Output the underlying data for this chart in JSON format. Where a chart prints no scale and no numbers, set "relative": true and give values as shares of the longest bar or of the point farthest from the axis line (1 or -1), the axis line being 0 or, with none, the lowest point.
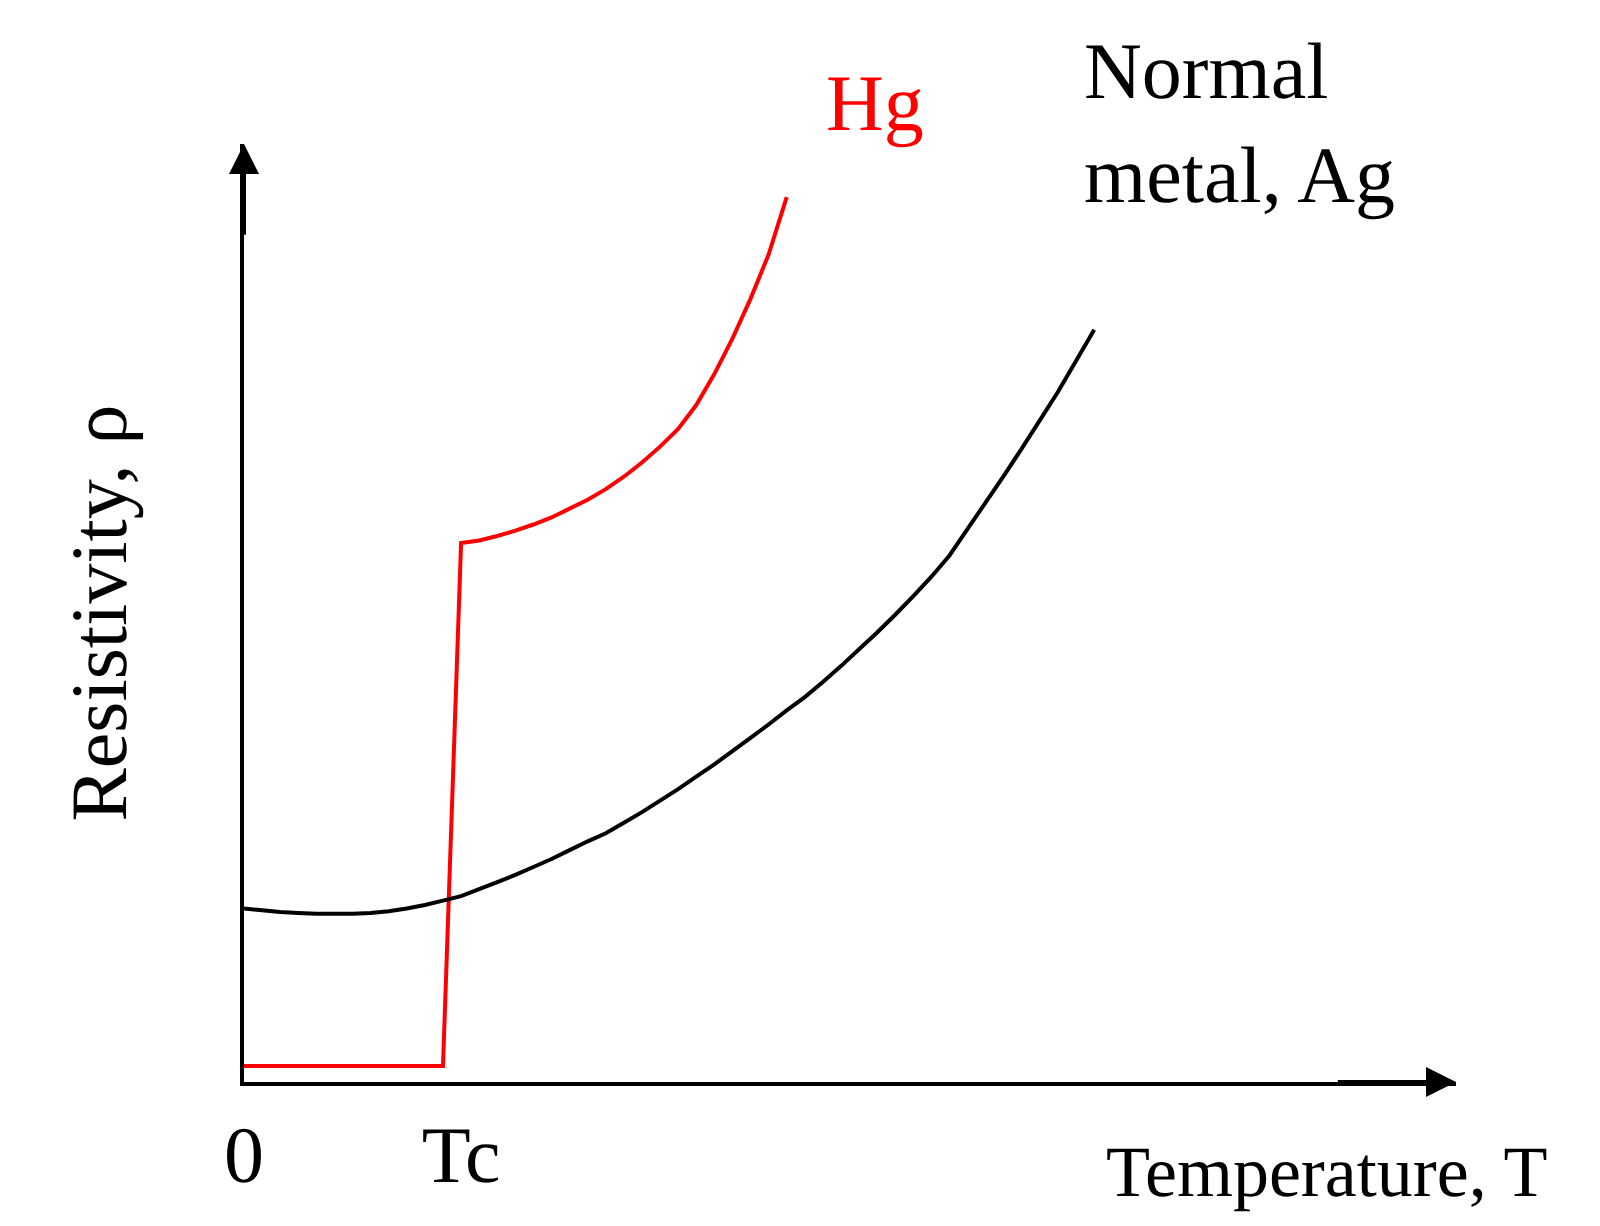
{
  "chart_data": {
    "type": "line",
    "relative": true,
    "xlabel": "Temperature, T",
    "ylabel": "Resistivity, ρ",
    "categories": [
      "0",
      null,
      null,
      null,
      null,
      null,
      null,
      null,
      null,
      null,
      null,
      null,
      "Tc",
      null,
      null,
      null,
      null,
      null,
      null,
      null,
      null,
      null,
      null,
      null,
      null,
      null,
      null,
      null,
      null,
      null,
      null,
      null,
      null,
      null,
      null,
      null,
      null,
      null,
      null,
      null,
      null,
      null,
      null,
      null,
      null,
      null,
      null,
      null,
      null,
      null,
      null,
      null,
      null,
      null,
      null,
      null,
      null,
      null,
      null,
      null,
      null,
      null,
      null,
      null,
      null,
      null,
      null,
      null
    ],
    "legend": false,
    "marker": "none",
    "line_style": "solid",
    "series": [
      {
        "name": "Hg",
        "color": "#ff0000",
        "values": [
          0.018,
          0.018,
          0.018,
          0.018,
          0.018,
          0.018,
          0.018,
          0.018,
          0.018,
          0.018,
          0.018,
          0.018,
          0.609,
          0.612,
          0.617,
          0.623,
          0.63,
          0.638,
          0.648,
          0.658,
          0.67,
          0.684,
          0.7,
          0.718,
          0.738,
          0.765,
          0.8,
          0.84,
          0.885,
          0.935,
          1.0,
          null,
          null,
          null,
          null,
          null,
          null,
          null,
          null,
          null,
          null,
          null,
          null,
          null,
          null,
          null,
          null,
          null,
          null,
          null,
          null,
          null,
          null,
          null,
          null,
          null,
          null,
          null,
          null,
          null,
          null,
          null,
          null,
          null,
          null,
          null,
          null,
          null
        ]
      },
      {
        "name": "Normal metal, Ag",
        "color": "#000000",
        "values": [
          0.196,
          0.194,
          0.192,
          0.191,
          0.19,
          0.19,
          0.19,
          0.191,
          0.193,
          0.196,
          0.2,
          0.205,
          0.21,
          0.218,
          0.226,
          0.234,
          0.243,
          0.252,
          0.262,
          0.272,
          0.281,
          0.293,
          0.305,
          0.318,
          0.331,
          0.345,
          0.359,
          0.374,
          0.389,
          0.404,
          0.42,
          0.435,
          0.452,
          0.47,
          0.489,
          0.508,
          0.528,
          0.549,
          0.571,
          0.595,
          0.625,
          0.655,
          0.685,
          0.716,
          0.748,
          0.78,
          0.815,
          0.85,
          null,
          null,
          null,
          null,
          null,
          null,
          null,
          null,
          null,
          null,
          null,
          null,
          null,
          null,
          null,
          null,
          null,
          null,
          null,
          null
        ]
      }
    ]
  }
}
